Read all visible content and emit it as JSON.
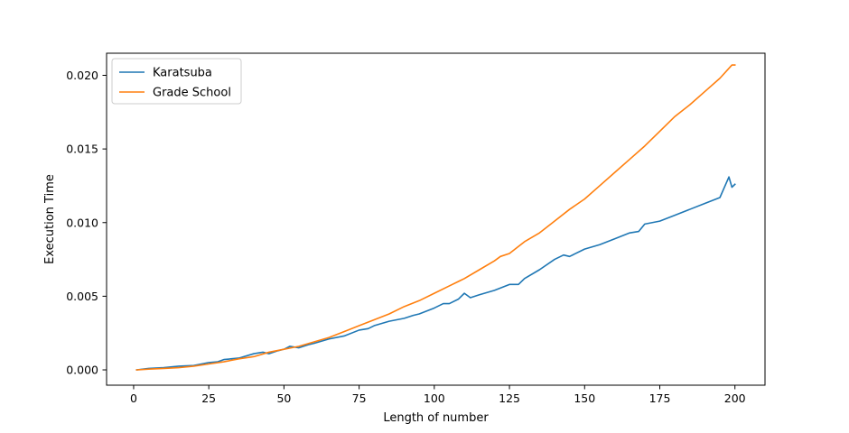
{
  "chart_data": {
    "type": "line",
    "title": "",
    "xlabel": "Length of number",
    "ylabel": "Execution Time",
    "xlim": [
      -9,
      210
    ],
    "ylim": [
      -0.00104,
      0.0215
    ],
    "xticks": [
      0,
      25,
      50,
      75,
      100,
      125,
      150,
      175,
      200
    ],
    "xtick_labels": [
      "0",
      "25",
      "50",
      "75",
      "100",
      "125",
      "150",
      "175",
      "200"
    ],
    "yticks": [
      0.0,
      0.005,
      0.01,
      0.015,
      0.02
    ],
    "ytick_labels": [
      "0.000",
      "0.005",
      "0.010",
      "0.015",
      "0.020"
    ],
    "grid": false,
    "legend_position": "top-left",
    "series": [
      {
        "name": "Karatsuba",
        "color": "#1f77b4",
        "x": [
          1,
          5,
          10,
          15,
          20,
          25,
          28,
          30,
          35,
          40,
          43,
          45,
          48,
          50,
          52,
          55,
          58,
          60,
          65,
          70,
          75,
          78,
          80,
          85,
          90,
          93,
          95,
          100,
          103,
          105,
          108,
          110,
          112,
          115,
          120,
          125,
          128,
          130,
          135,
          140,
          143,
          145,
          150,
          155,
          160,
          165,
          168,
          170,
          175,
          180,
          185,
          190,
          195,
          198,
          199,
          200
        ],
        "y": [
          0.0,
          0.0001,
          0.00015,
          0.00025,
          0.0003,
          0.0005,
          0.00055,
          0.0007,
          0.0008,
          0.0011,
          0.0012,
          0.0011,
          0.0013,
          0.0014,
          0.0016,
          0.0015,
          0.0017,
          0.0018,
          0.0021,
          0.0023,
          0.0027,
          0.0028,
          0.003,
          0.0033,
          0.0035,
          0.0037,
          0.0038,
          0.0042,
          0.0045,
          0.0045,
          0.0048,
          0.0052,
          0.0049,
          0.0051,
          0.0054,
          0.0058,
          0.0058,
          0.0062,
          0.0068,
          0.0075,
          0.0078,
          0.0077,
          0.0082,
          0.0085,
          0.0089,
          0.0093,
          0.0094,
          0.0099,
          0.0101,
          0.0105,
          0.0109,
          0.0113,
          0.0117,
          0.0131,
          0.0124,
          0.0126
        ]
      },
      {
        "name": "Grade School",
        "color": "#ff7f0e",
        "x": [
          1,
          5,
          10,
          15,
          20,
          25,
          30,
          35,
          40,
          45,
          50,
          55,
          60,
          65,
          70,
          75,
          80,
          85,
          90,
          95,
          100,
          105,
          110,
          115,
          120,
          122,
          125,
          130,
          135,
          140,
          145,
          150,
          155,
          160,
          165,
          170,
          175,
          180,
          185,
          190,
          195,
          199,
          200
        ],
        "y": [
          0.0,
          5e-05,
          0.0001,
          0.00015,
          0.00025,
          0.0004,
          0.00055,
          0.00075,
          0.0009,
          0.0012,
          0.0014,
          0.0016,
          0.0019,
          0.0022,
          0.0026,
          0.003,
          0.0034,
          0.0038,
          0.0043,
          0.0047,
          0.0052,
          0.0057,
          0.0062,
          0.0068,
          0.0074,
          0.0077,
          0.0079,
          0.0087,
          0.0093,
          0.0101,
          0.0109,
          0.0116,
          0.0125,
          0.0134,
          0.0143,
          0.0152,
          0.0162,
          0.0172,
          0.018,
          0.0189,
          0.0198,
          0.0207,
          0.0207
        ]
      }
    ]
  }
}
